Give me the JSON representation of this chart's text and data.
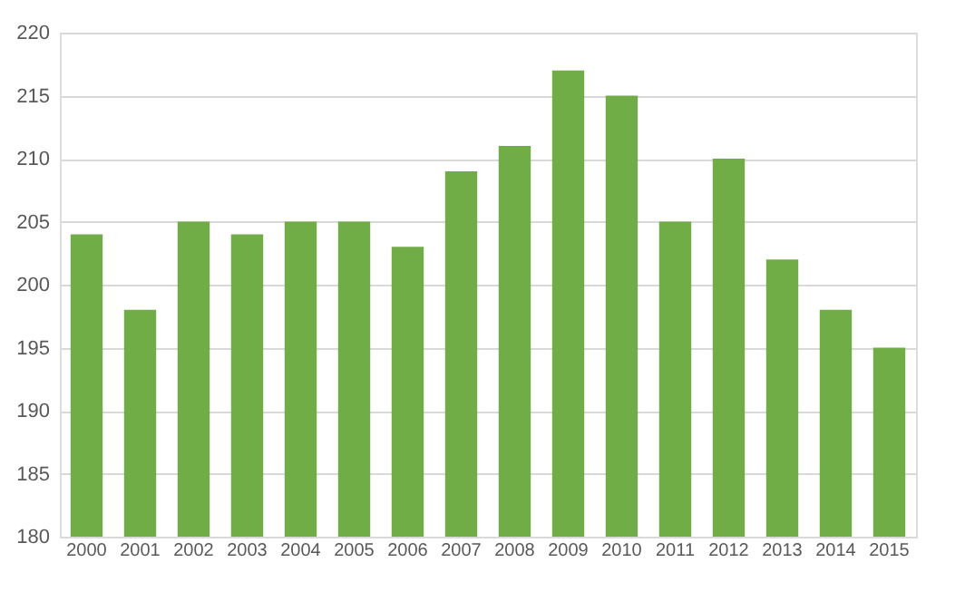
{
  "chart_data": {
    "type": "bar",
    "categories": [
      "2000",
      "2001",
      "2002",
      "2003",
      "2004",
      "2005",
      "2006",
      "2007",
      "2008",
      "2009",
      "2010",
      "2011",
      "2012",
      "2013",
      "2014",
      "2015"
    ],
    "values": [
      204,
      198,
      205,
      204,
      205,
      205,
      203,
      209,
      211,
      217,
      215,
      205,
      210,
      202,
      198,
      195
    ],
    "color": "#70ad47",
    "ylim": [
      180,
      220
    ],
    "yticks": [
      180,
      185,
      190,
      195,
      200,
      205,
      210,
      215,
      220
    ],
    "grid": "y"
  }
}
